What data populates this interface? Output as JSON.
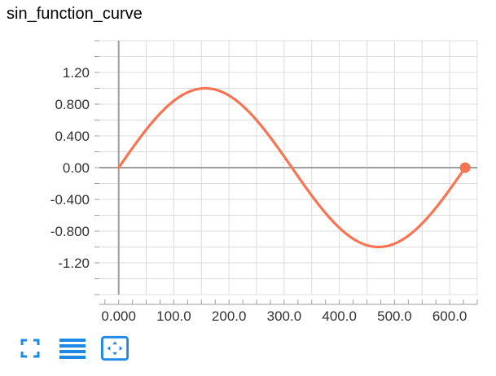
{
  "title": "sin_function_curve",
  "colors": {
    "series": "#f87452",
    "axis": "#9e9e9e",
    "grid": "#dcdcdc",
    "icon": "#1e88e5"
  },
  "toolbar": {
    "items": [
      {
        "name": "fit-domain-icon"
      },
      {
        "name": "toggle-log-scale-icon"
      },
      {
        "name": "expand-chart-icon"
      }
    ]
  },
  "chart_data": {
    "type": "line",
    "title": "sin_function_curve",
    "xlabel": "",
    "ylabel": "",
    "xlim": [
      -35,
      650
    ],
    "ylim": [
      -1.6,
      1.6
    ],
    "x_ticks": [
      "0.000",
      "100.0",
      "200.0",
      "300.0",
      "400.0",
      "500.0",
      "600.0"
    ],
    "x_tick_values": [
      0,
      100,
      200,
      300,
      400,
      500,
      600
    ],
    "y_ticks": [
      "1.20",
      "0.800",
      "0.400",
      "0.00",
      "-0.400",
      "-0.800",
      "-1.20"
    ],
    "y_tick_values": [
      1.2,
      0.8,
      0.4,
      0,
      -0.4,
      -0.8,
      -1.2
    ],
    "grid": true,
    "series": [
      {
        "function": "sin",
        "x_range": [
          0,
          628
        ],
        "x_period": 628,
        "endpoint": {
          "x": 628,
          "y": 0
        }
      }
    ]
  }
}
